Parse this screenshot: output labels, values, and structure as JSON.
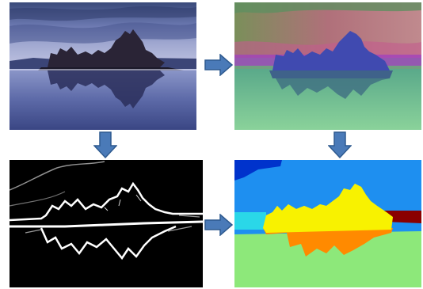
{
  "figure": {
    "panels": [
      {
        "id": "input-photo",
        "content": "lake-rock-formation-photo"
      },
      {
        "id": "feature-embedding",
        "content": "color-coded-feature-map"
      },
      {
        "id": "boundary-map",
        "content": "white-edges-on-black"
      },
      {
        "id": "segmentation",
        "content": "flat-color-region-labels"
      }
    ],
    "arrows": [
      "right",
      "down",
      "down",
      "right"
    ],
    "colors": {
      "arrow_fill": "#4a7ab8",
      "arrow_stroke": "#2e5a8f",
      "seg_dark_blue": "#0033cc",
      "seg_sky_blue": "#1e8ff0",
      "seg_cyan": "#2ad7e8",
      "seg_yellow": "#f8f200",
      "seg_dark_red": "#8a0000",
      "seg_orange": "#ff8a00",
      "seg_light_green": "#8de87a"
    }
  }
}
